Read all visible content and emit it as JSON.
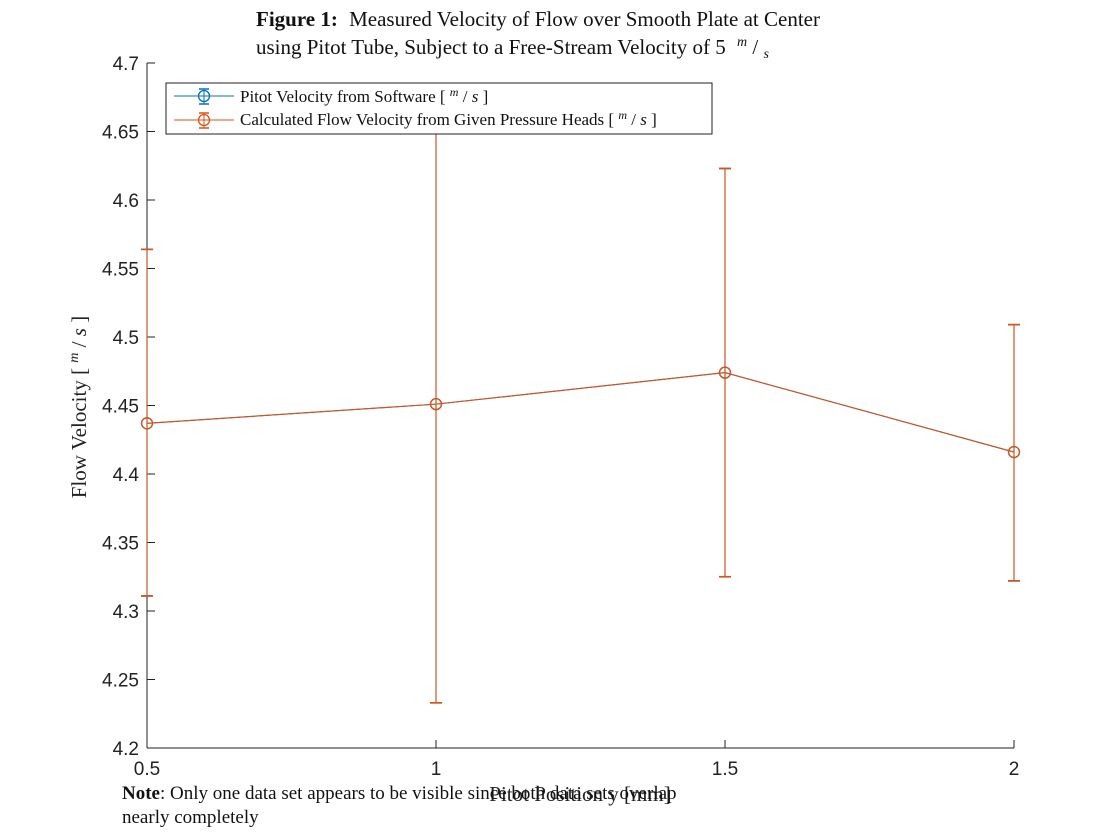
{
  "chart_data": {
    "type": "line",
    "title": {
      "label": "Figure 1:",
      "line1": "Measured Velocity of Flow over Smooth Plate at Center",
      "line2": "using Pitot Tube, Subject to a Free-Stream Velocity of 5",
      "unit_num": "m",
      "unit_den": "s"
    },
    "xlabel": "Pitot Position y [mm]",
    "ylabel": {
      "text": "Flow Velocity [",
      "unit_num": "m",
      "unit_den": "s",
      "close": "]"
    },
    "xlim": [
      0.5,
      2
    ],
    "ylim": [
      4.2,
      4.7
    ],
    "xticks": [
      0.5,
      1,
      1.5,
      2
    ],
    "xtick_labels": [
      "0.5",
      "1",
      "1.5",
      "2"
    ],
    "yticks": [
      4.2,
      4.25,
      4.3,
      4.35,
      4.4,
      4.45,
      4.5,
      4.55,
      4.6,
      4.65,
      4.7
    ],
    "ytick_labels": [
      "4.2",
      "4.25",
      "4.3",
      "4.35",
      "4.4",
      "4.45",
      "4.5",
      "4.55",
      "4.6",
      "4.65",
      "4.7"
    ],
    "grid": false,
    "legend_position": "top-left",
    "x": [
      0.5,
      1,
      1.5,
      2
    ],
    "series": [
      {
        "name": "Pitot Velocity from Software [",
        "name_unit_num": "m",
        "name_unit_den": "s",
        "name_close": "]",
        "color": "#0072BD",
        "values": [
          4.437,
          4.451,
          4.474,
          4.416
        ],
        "err_low": [
          4.311,
          4.233,
          4.325,
          4.322
        ],
        "err_high": [
          4.564,
          4.669,
          4.623,
          4.509
        ]
      },
      {
        "name": "Calculated Flow Velocity from Given Pressure Heads [",
        "name_unit_num": "m",
        "name_unit_den": "s",
        "name_close": "]",
        "color": "#D95319",
        "values": [
          4.437,
          4.451,
          4.474,
          4.416
        ],
        "err_low": [
          4.311,
          4.233,
          4.325,
          4.322
        ],
        "err_high": [
          4.564,
          4.669,
          4.623,
          4.509
        ]
      }
    ]
  },
  "note": {
    "label": "Note",
    "text": ": Only one data set appears to be visible since both data sets overlap nearly completely"
  }
}
